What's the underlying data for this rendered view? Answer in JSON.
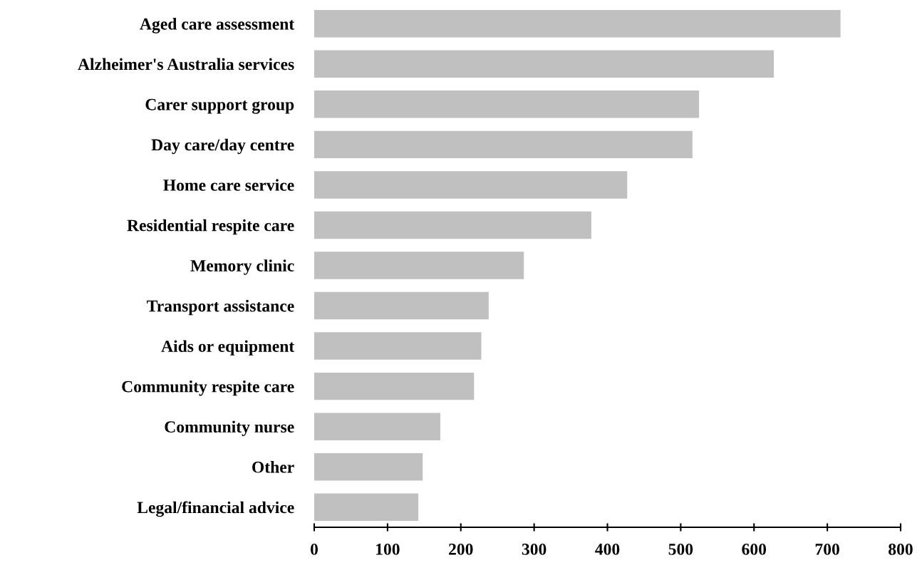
{
  "chart_data": {
    "type": "bar",
    "orientation": "horizontal",
    "categories": [
      "Aged care assessment",
      "Alzheimer's Australia services",
      "Carer support group",
      "Day care/day centre",
      "Home care service",
      "Residential respite care",
      "Memory clinic",
      "Transport assistance",
      "Aids or equipment",
      "Community respite care",
      "Community nurse",
      "Other",
      "Legal/financial advice"
    ],
    "values": [
      718,
      627,
      525,
      516,
      427,
      378,
      286,
      238,
      228,
      218,
      172,
      148,
      142
    ],
    "color": "#c0c0c0",
    "xlim": [
      0,
      800
    ],
    "xticks": [
      0,
      100,
      200,
      300,
      400,
      500,
      600,
      700,
      800
    ],
    "grid": false
  }
}
